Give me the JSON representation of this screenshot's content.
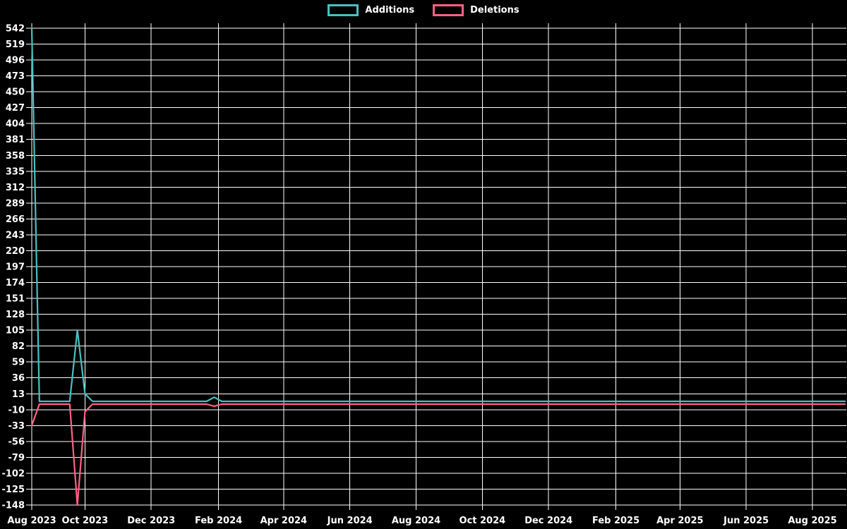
{
  "chart_data": {
    "type": "line",
    "title": "",
    "background_color": "#000000",
    "grid_color": "#ffffff",
    "text_color": "#ffffff",
    "legend_position": "top-center",
    "legend": [
      {
        "label": "Additions",
        "color": "#4bc0c0"
      },
      {
        "label": "Deletions",
        "color": "#ff6384"
      }
    ],
    "y_axis": {
      "min": -148,
      "max": 542,
      "tick_step": 23,
      "ticks": [
        542,
        519,
        496,
        473,
        450,
        427,
        404,
        381,
        358,
        335,
        312,
        289,
        266,
        243,
        220,
        197,
        174,
        151,
        128,
        105,
        82,
        59,
        36,
        13,
        -10,
        -33,
        -56,
        -79,
        -102,
        -125,
        -148
      ]
    },
    "x_axis": {
      "start_date": "2023-08-13",
      "end_date": "2025-08-31",
      "ticks": [
        {
          "label": "Aug 2023",
          "date": "2023-08-13"
        },
        {
          "label": "Oct 2023",
          "date": "2023-10-01"
        },
        {
          "label": "Dec 2023",
          "date": "2023-12-01"
        },
        {
          "label": "Feb 2024",
          "date": "2024-02-01"
        },
        {
          "label": "Apr 2024",
          "date": "2024-04-01"
        },
        {
          "label": "Jun 2024",
          "date": "2024-06-01"
        },
        {
          "label": "Aug 2024",
          "date": "2024-08-01"
        },
        {
          "label": "Oct 2024",
          "date": "2024-10-01"
        },
        {
          "label": "Dec 2024",
          "date": "2024-12-01"
        },
        {
          "label": "Feb 2025",
          "date": "2025-02-01"
        },
        {
          "label": "Apr 2025",
          "date": "2025-04-01"
        },
        {
          "label": "Jun 2025",
          "date": "2025-06-01"
        },
        {
          "label": "Aug 2025",
          "date": "2025-08-01"
        }
      ]
    },
    "series": [
      {
        "name": "Additions",
        "color": "#4bc0c0",
        "points": [
          {
            "date": "2023-08-13",
            "value": 542
          },
          {
            "date": "2023-08-20",
            "value": 2
          },
          {
            "date": "2023-09-17",
            "value": 2
          },
          {
            "date": "2023-09-24",
            "value": 105
          },
          {
            "date": "2023-10-01",
            "value": 13
          },
          {
            "date": "2023-10-08",
            "value": 2
          },
          {
            "date": "2024-01-21",
            "value": 2
          },
          {
            "date": "2024-01-28",
            "value": 8
          },
          {
            "date": "2024-02-04",
            "value": 2
          },
          {
            "date": "2025-08-31",
            "value": 2
          }
        ]
      },
      {
        "name": "Deletions",
        "color": "#ff6384",
        "points": [
          {
            "date": "2023-08-13",
            "value": -33
          },
          {
            "date": "2023-08-20",
            "value": -2
          },
          {
            "date": "2023-09-17",
            "value": -2
          },
          {
            "date": "2023-09-24",
            "value": -148
          },
          {
            "date": "2023-10-01",
            "value": -13
          },
          {
            "date": "2023-10-08",
            "value": -2
          },
          {
            "date": "2024-01-21",
            "value": -2
          },
          {
            "date": "2024-01-28",
            "value": -5
          },
          {
            "date": "2024-02-04",
            "value": -2
          },
          {
            "date": "2025-08-31",
            "value": -2
          }
        ]
      }
    ]
  }
}
